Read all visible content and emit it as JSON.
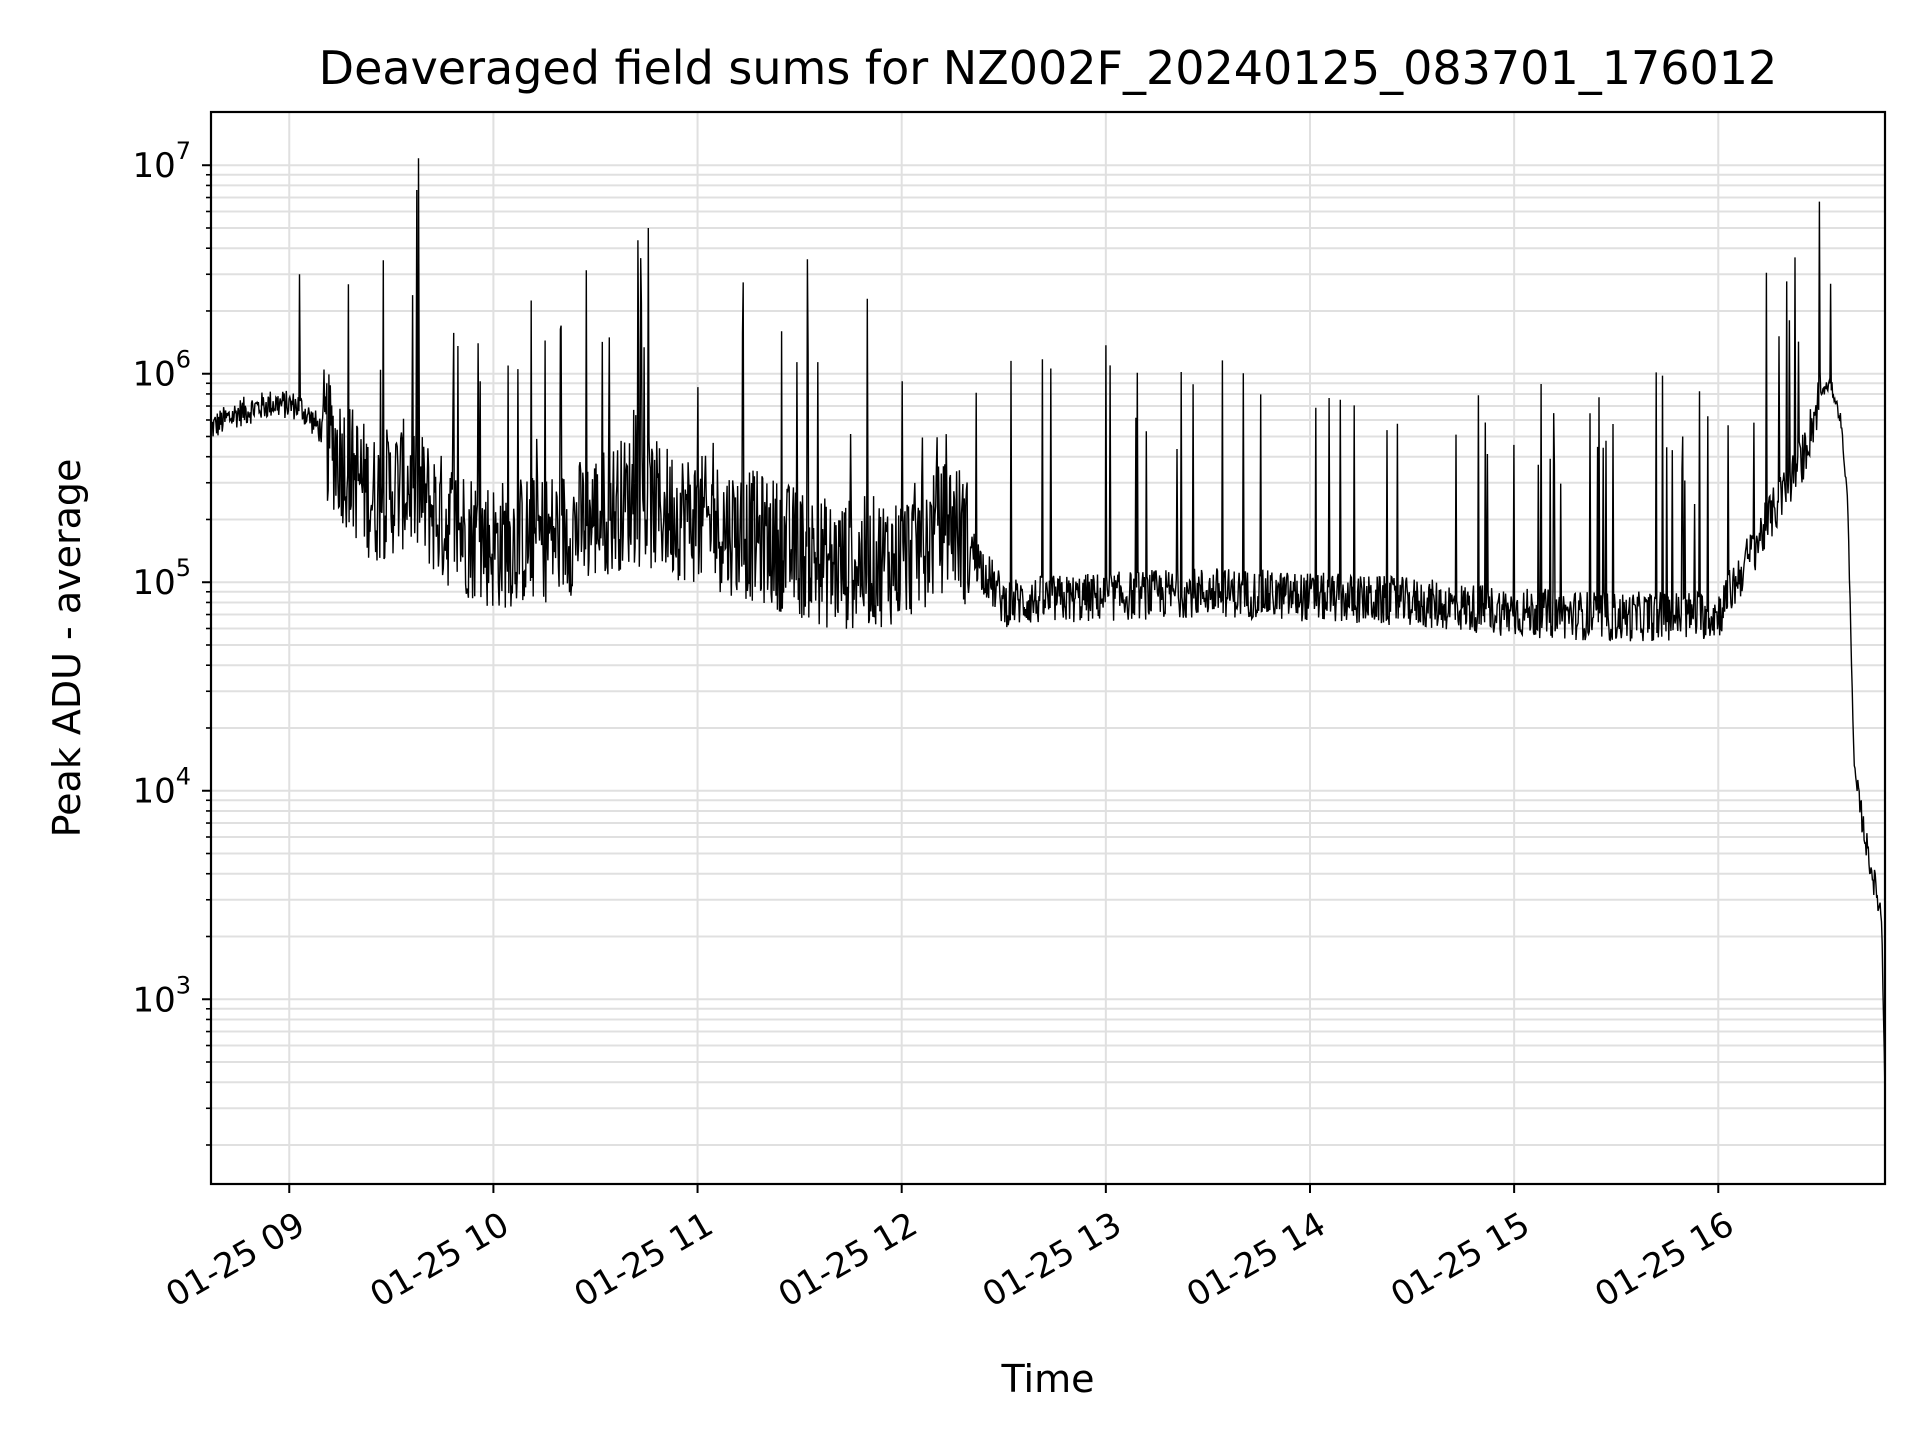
{
  "chart_data": {
    "type": "line",
    "title": "Deaveraged field sums for NZ002F_20240125_083701_176012",
    "xlabel": "Time",
    "ylabel": "Peak ADU - average",
    "yscale": "log",
    "ylim": [
      130,
      18000000
    ],
    "xlim": [
      "2024-01-25 08:37",
      "2024-01-25 16:49"
    ],
    "grid": true,
    "line_color": "#000000",
    "x_tick_labels": [
      "01-25 09",
      "01-25 10",
      "01-25 11",
      "01-25 12",
      "01-25 13",
      "01-25 14",
      "01-25 15",
      "01-25 16"
    ],
    "y_tick_labels": [
      {
        "base": "10",
        "exp": "3"
      },
      {
        "base": "10",
        "exp": "4"
      },
      {
        "base": "10",
        "exp": "5"
      },
      {
        "base": "10",
        "exp": "6"
      },
      {
        "base": "10",
        "exp": "7"
      }
    ],
    "series": [
      {
        "x": [
          "2024-01-25 08:37",
          "2024-01-25 08:45",
          "2024-01-25 08:55",
          "2024-01-25 09:03",
          "2024-01-25 09:10",
          "2024-01-25 09:25",
          "2024-01-25 09:35",
          "2024-01-25 09:45",
          "2024-01-25 10:00",
          "2024-01-25 10:20",
          "2024-01-25 10:40",
          "2024-01-25 11:00",
          "2024-01-25 11:20",
          "2024-01-25 11:40",
          "2024-01-25 12:00",
          "2024-01-25 12:15",
          "2024-01-25 12:30",
          "2024-01-25 13:00",
          "2024-01-25 13:30",
          "2024-01-25 14:00",
          "2024-01-25 14:30",
          "2024-01-25 15:00",
          "2024-01-25 15:30",
          "2024-01-25 16:00",
          "2024-01-25 16:15",
          "2024-01-25 16:25",
          "2024-01-25 16:30",
          "2024-01-25 16:33",
          "2024-01-25 16:36",
          "2024-01-25 16:38",
          "2024-01-25 16:40",
          "2024-01-25 16:44",
          "2024-01-25 16:48",
          "2024-01-25 16:49"
        ],
        "y": [
          550000,
          650000,
          720000,
          700000,
          520000,
          250000,
          300000,
          200000,
          150000,
          170000,
          250000,
          200000,
          160000,
          120000,
          130000,
          200000,
          80000,
          85000,
          90000,
          85000,
          80000,
          72000,
          68000,
          70000,
          200000,
          400000,
          800000,
          900000,
          600000,
          250000,
          12000,
          5000,
          2500,
          400
        ]
      }
    ],
    "spikes": [
      {
        "x": "2024-01-25 09:03",
        "y": 3000000
      },
      {
        "x": "2024-01-25 09:38",
        "y": 10800000
      },
      {
        "x": "2024-01-25 16:33",
        "y": 2700000
      }
    ]
  }
}
